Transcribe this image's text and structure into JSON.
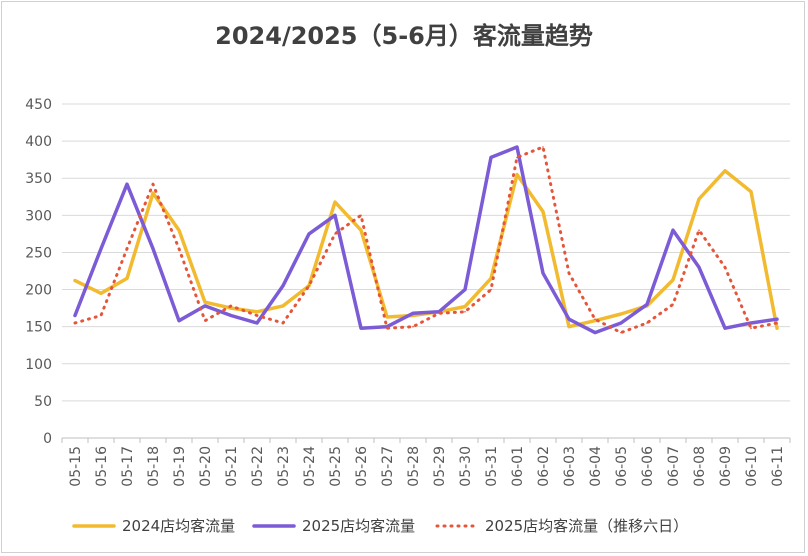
{
  "chart_data": {
    "type": "line",
    "title": "2024/2025（5-6月）客流量趋势",
    "xlabel": "",
    "ylabel": "",
    "ylim": [
      0,
      450
    ],
    "yticks": [
      0,
      50,
      100,
      150,
      200,
      250,
      300,
      350,
      400,
      450
    ],
    "grid": true,
    "legend_position": "bottom",
    "categories": [
      "05-15",
      "05-16",
      "05-17",
      "05-18",
      "05-19",
      "05-20",
      "05-21",
      "05-22",
      "05-23",
      "05-24",
      "05-25",
      "05-26",
      "05-27",
      "05-28",
      "05-29",
      "05-30",
      "05-31",
      "06-01",
      "06-02",
      "06-03",
      "06-04",
      "06-05",
      "06-06",
      "06-07",
      "06-08",
      "06-09",
      "06-10",
      "06-11"
    ],
    "series": [
      {
        "name": "2024店均客流量",
        "color": "#F2BA2F",
        "style": "solid",
        "values": [
          212,
          195,
          215,
          330,
          280,
          183,
          175,
          170,
          178,
          205,
          318,
          280,
          163,
          165,
          170,
          177,
          215,
          355,
          305,
          150,
          158,
          167,
          178,
          213,
          322,
          360,
          332,
          148
        ]
      },
      {
        "name": "2025店均客流量",
        "color": "#7B5BD6",
        "style": "solid",
        "values": [
          165,
          255,
          342,
          255,
          158,
          178,
          165,
          155,
          205,
          275,
          300,
          148,
          150,
          168,
          170,
          200,
          378,
          392,
          222,
          160,
          142,
          155,
          180,
          280,
          230,
          148,
          155,
          160
        ]
      },
      {
        "name": "2025店均客流量（推移六日）",
        "color": "#E5553A",
        "style": "dotted",
        "values": [
          155,
          165,
          255,
          342,
          255,
          158,
          178,
          165,
          155,
          205,
          275,
          300,
          148,
          150,
          168,
          170,
          200,
          378,
          392,
          222,
          160,
          142,
          155,
          180,
          280,
          230,
          148,
          155
        ]
      }
    ]
  }
}
